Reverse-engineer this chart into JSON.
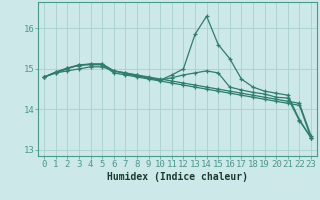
{
  "xlabel": "Humidex (Indice chaleur)",
  "background_color": "#cce8e8",
  "grid_color": "#aad0d0",
  "line_color": "#2e7d6e",
  "spine_color": "#4a9a8a",
  "x": [
    0,
    1,
    2,
    3,
    4,
    5,
    6,
    7,
    8,
    9,
    10,
    11,
    12,
    13,
    14,
    15,
    16,
    17,
    18,
    19,
    20,
    21,
    22,
    23
  ],
  "series": [
    [
      14.8,
      14.92,
      15.02,
      15.1,
      15.12,
      15.12,
      14.95,
      14.88,
      14.82,
      14.78,
      14.72,
      14.85,
      15.0,
      15.85,
      16.3,
      15.6,
      15.25,
      14.75,
      14.55,
      14.45,
      14.4,
      14.35,
      13.75,
      13.3
    ],
    [
      14.8,
      14.92,
      15.02,
      15.08,
      15.12,
      15.12,
      14.95,
      14.9,
      14.84,
      14.78,
      14.72,
      14.78,
      14.85,
      14.9,
      14.95,
      14.9,
      14.55,
      14.48,
      14.42,
      14.38,
      14.3,
      14.28,
      13.72,
      13.3
    ],
    [
      14.8,
      14.9,
      15.0,
      15.1,
      15.1,
      15.1,
      14.9,
      14.85,
      14.8,
      14.75,
      14.7,
      14.65,
      14.6,
      14.55,
      14.5,
      14.45,
      14.4,
      14.35,
      14.3,
      14.25,
      14.2,
      14.15,
      14.1,
      13.3
    ],
    [
      14.8,
      14.9,
      14.95,
      15.0,
      15.05,
      15.05,
      14.95,
      14.9,
      14.85,
      14.8,
      14.75,
      14.7,
      14.65,
      14.6,
      14.55,
      14.5,
      14.45,
      14.4,
      14.35,
      14.3,
      14.25,
      14.2,
      14.15,
      13.35
    ]
  ],
  "ylim": [
    12.85,
    16.65
  ],
  "xlim": [
    -0.5,
    23.5
  ],
  "yticks": [
    13,
    14,
    15,
    16
  ],
  "xticks": [
    0,
    1,
    2,
    3,
    4,
    5,
    6,
    7,
    8,
    9,
    10,
    11,
    12,
    13,
    14,
    15,
    16,
    17,
    18,
    19,
    20,
    21,
    22,
    23
  ],
  "tick_fontsize": 6.5,
  "xlabel_fontsize": 7.0
}
